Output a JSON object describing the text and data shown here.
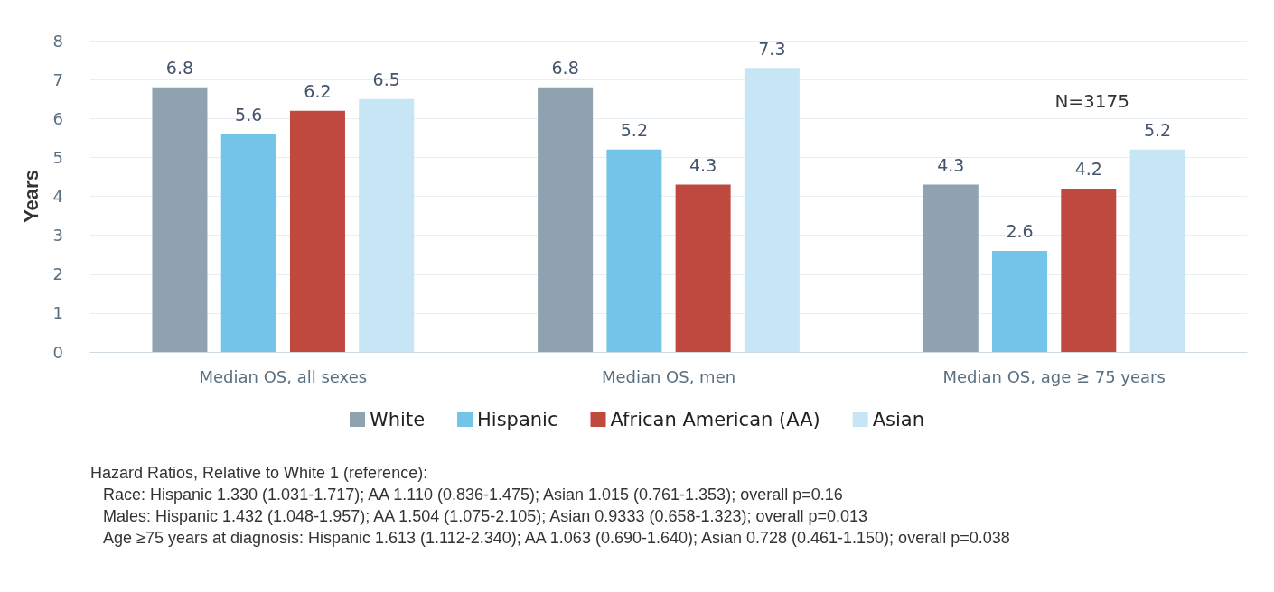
{
  "chart_data": {
    "type": "bar",
    "ylabel": "Years",
    "categories": [
      "Median OS, all sexes",
      "Median OS, men",
      "Median OS, age ≥ 75 years"
    ],
    "series": [
      {
        "name": "White",
        "color": "#8ea2b0",
        "values": [
          6.8,
          6.8,
          4.3
        ]
      },
      {
        "name": "Hispanic",
        "color": "#72c4e8",
        "values": [
          5.6,
          5.2,
          2.6
        ]
      },
      {
        "name": "African American (AA)",
        "color": "#c0493f",
        "values": [
          6.2,
          4.3,
          4.2
        ]
      },
      {
        "name": "Asian",
        "color": "#c6e6f5",
        "values": [
          6.5,
          7.3,
          5.2
        ]
      }
    ],
    "ylim": [
      0,
      8
    ],
    "yticks": [
      0,
      1,
      2,
      3,
      4,
      5,
      6,
      7,
      8
    ],
    "grid": "y",
    "legend": "bottom",
    "data_labels": true,
    "annotations": [
      "N=3175",
      "Hazard Ratios, Relative to White 1 (reference):",
      "Race: Hispanic 1.330 (1.031-1.717); AA 1.110 (0.836-1.475); Asian 1.015 (0.761-1.353); overall p=0.16",
      "Males: Hispanic 1.432 (1.048-1.957); AA 1.504 (1.075-2.105); Asian 0.9333 (0.658-1.323); overall p=0.013",
      "Age ≥75 years at diagnosis: Hispanic 1.613 (1.112-2.340); AA 1.063 (0.690-1.640); Asian 0.728 (0.461-1.150); overall p=0.038"
    ]
  }
}
